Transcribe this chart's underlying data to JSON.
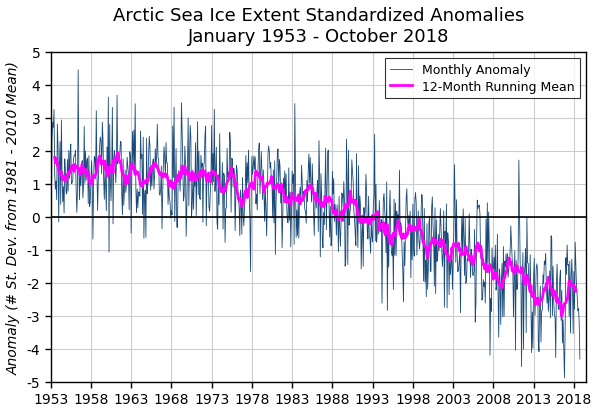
{
  "title_line1": "Arctic Sea Ice Extent Standardized Anomalies",
  "title_line2": "January 1953 - October 2018",
  "ylabel": "Anomaly (# St. Dev. from 1981 - 2010 Mean)",
  "xlabel": "",
  "ylim": [
    -5,
    5
  ],
  "xlim": [
    1953,
    2019.5
  ],
  "yticks": [
    -5,
    -4,
    -3,
    -2,
    -1,
    0,
    1,
    2,
    3,
    4,
    5
  ],
  "xticks": [
    1953,
    1958,
    1963,
    1968,
    1973,
    1978,
    1983,
    1988,
    1993,
    1998,
    2003,
    2008,
    2013,
    2018
  ],
  "line_color": "#1a4a7a",
  "running_mean_color": "#ff00ff",
  "background_color": "#ffffff",
  "grid_color": "#cccccc",
  "legend_labels": [
    "Monthly Anomaly",
    "12-Month Running Mean"
  ],
  "title_fontsize": 13,
  "axis_label_fontsize": 10,
  "tick_fontsize": 10
}
